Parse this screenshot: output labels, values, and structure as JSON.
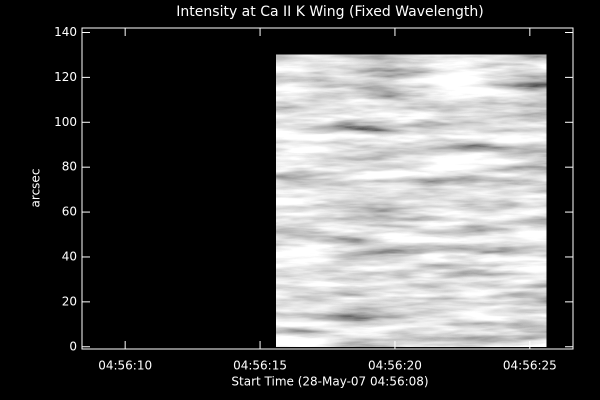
{
  "chart_data": {
    "type": "image",
    "title": "Intensity at Ca II K Wing (Fixed Wavelength)",
    "x_label": "Start Time (28-May-07 04:56:08)",
    "y_label": "arcsec",
    "xlim": [
      0.4,
      18.6
    ],
    "xticks": [
      {
        "value": 2,
        "label": "04:56:10"
      },
      {
        "value": 7,
        "label": "04:56:15"
      },
      {
        "value": 12,
        "label": "04:56:20"
      },
      {
        "value": 17,
        "label": "04:56:25"
      }
    ],
    "ylim": [
      -1,
      142
    ],
    "yticks": [
      0,
      20,
      40,
      60,
      80,
      100,
      120,
      140
    ],
    "image_x": [
      7.6,
      17.6
    ],
    "image_y": [
      0,
      130
    ],
    "color": "#ffffff"
  }
}
